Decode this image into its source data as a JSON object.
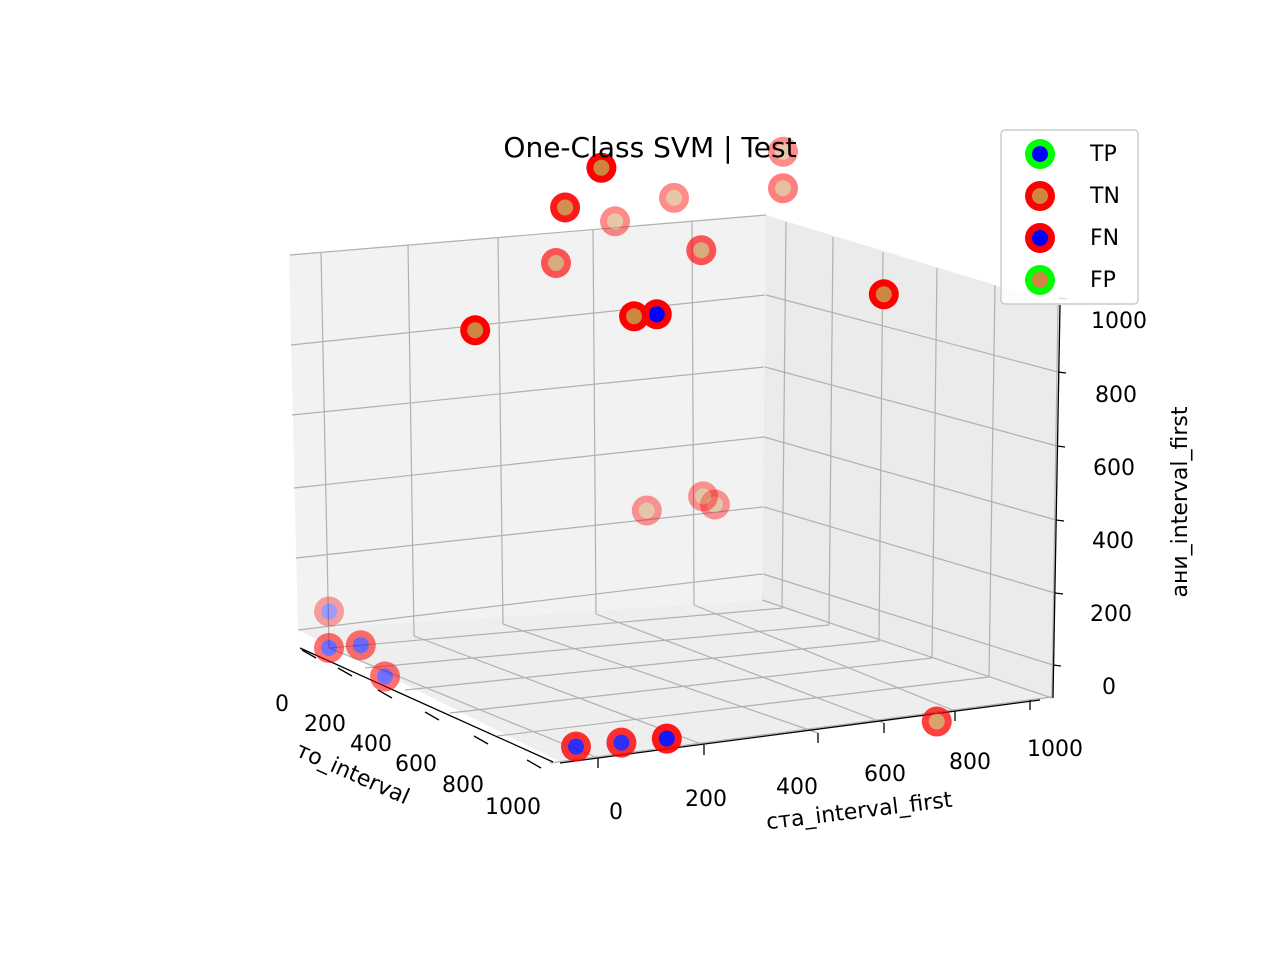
{
  "chart_data": {
    "type": "scatter",
    "title": "One-Class SVM | Test",
    "xlabel": "то_interval",
    "ylabel": "ста_interval_first",
    "zlabel": "ани_interval_first",
    "x_ticks": [
      "0",
      "200",
      "400",
      "600",
      "800",
      "1000"
    ],
    "y_ticks": [
      "0",
      "200",
      "400",
      "600",
      "800",
      "1000"
    ],
    "z_ticks": [
      "0",
      "200",
      "400",
      "600",
      "800",
      "1000"
    ],
    "legend": {
      "placement": "top-right",
      "entries": [
        {
          "label": "TP",
          "edge": "#00ff00",
          "face": "#0000ff"
        },
        {
          "label": "TN",
          "edge": "#ff0000",
          "face": "#cd853f"
        },
        {
          "label": "FN",
          "edge": "#ff0000",
          "face": "#0000ff"
        },
        {
          "label": "FP",
          "edge": "#00ff00",
          "face": "#cd853f"
        }
      ]
    },
    "series": [
      {
        "name": "TN",
        "points": [
          {
            "x": 950,
            "y": 870,
            "z": 0,
            "depth": 0.75
          },
          {
            "x": 0,
            "y": 850,
            "z": 300,
            "depth": 0.4
          },
          {
            "x": 0,
            "y": 700,
            "z": 300,
            "depth": 0.4
          },
          {
            "x": 150,
            "y": 750,
            "z": 380,
            "depth": 0.4
          },
          {
            "x": 0,
            "y": 500,
            "z": 1000,
            "depth": 0.65
          },
          {
            "x": 0,
            "y": 820,
            "z": 1000,
            "depth": 0.65
          },
          {
            "x": 0,
            "y": 630,
            "z": 1100,
            "depth": 0.45
          },
          {
            "x": 0,
            "y": 760,
            "z": 1150,
            "depth": 0.45
          },
          {
            "x": 0,
            "y": 1000,
            "z": 1250,
            "depth": 0.45
          },
          {
            "x": 0,
            "y": 1000,
            "z": 1150,
            "depth": 0.5
          },
          {
            "x": 450,
            "y": 1000,
            "z": 1000,
            "depth": 1
          },
          {
            "x": 450,
            "y": 100,
            "z": 1000,
            "depth": 1
          },
          {
            "x": 450,
            "y": 450,
            "z": 1000,
            "depth": 1
          },
          {
            "x": 0,
            "y": 520,
            "z": 1150,
            "depth": 0.9
          },
          {
            "x": 0,
            "y": 600,
            "z": 1250,
            "depth": 1
          }
        ]
      },
      {
        "name": "FN",
        "points": [
          {
            "x": 900,
            "y": 100,
            "z": 0,
            "depth": 0.8
          },
          {
            "x": 900,
            "y": 200,
            "z": 0,
            "depth": 0.8
          },
          {
            "x": 900,
            "y": 300,
            "z": 0,
            "depth": 0.9
          },
          {
            "x": 250,
            "y": 0,
            "z": 0,
            "depth": 0.55
          },
          {
            "x": 0,
            "y": 0,
            "z": 0,
            "depth": 0.55
          },
          {
            "x": 0,
            "y": 70,
            "z": 0,
            "depth": 0.55
          },
          {
            "x": 0,
            "y": 0,
            "z": 100,
            "depth": 0.35
          },
          {
            "x": 450,
            "y": 500,
            "z": 1000,
            "depth": 1
          }
        ]
      }
    ]
  }
}
